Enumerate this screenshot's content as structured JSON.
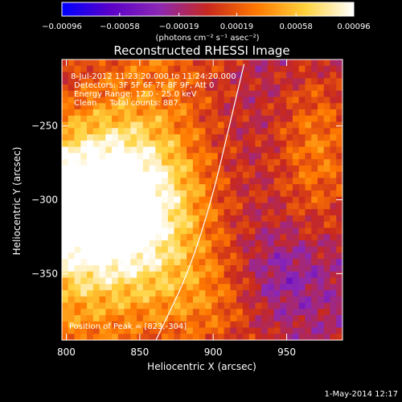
{
  "chart_data": {
    "type": "heatmap",
    "title": "Reconstructed RHESSI Image",
    "xlabel": "Heliocentric X (arcsec)",
    "ylabel": "Heliocentric Y (arcsec)",
    "xlim": [
      797,
      988
    ],
    "ylim": [
      -395,
      -205
    ],
    "x_ticks": [
      800,
      850,
      900,
      950
    ],
    "x_tick_labels": [
      "800",
      "850",
      "900",
      "950"
    ],
    "y_ticks": [
      -250,
      -300,
      -350
    ],
    "y_tick_labels": [
      "−250",
      "−300",
      "−350"
    ],
    "colorbar": {
      "range": [
        -0.00096,
        0.00096
      ],
      "ticks": [
        -0.00096,
        -0.00058,
        -0.00019,
        0.00019,
        0.00058,
        0.00096
      ],
      "tick_labels": [
        "−0.00096",
        "−0.00058",
        "−0.00019",
        "0.00019",
        "0.00058",
        "0.00096"
      ],
      "unit_label": "(photons cm⁻² s⁻¹ asec⁻²)",
      "colors": [
        "#0000ff",
        "#5a00c8",
        "#8c28b4",
        "#c8281e",
        "#ff7800",
        "#ffd23c",
        "#ffffff"
      ]
    },
    "peak": {
      "x": 823,
      "y": -304
    },
    "limb_curve": [
      [
        861,
        -395
      ],
      [
        883,
        -350
      ],
      [
        899,
        -300
      ],
      [
        911,
        -250
      ],
      [
        921,
        -208
      ]
    ],
    "annotations": {
      "time_range": "8-Jul-2012 11:23:20.000 to 11:24:20.000",
      "detectors": "Detectors: 3F 5F 6F 7F 8F 9F, Att 0",
      "energy": "Energy Range: 12.0 - 25.0 keV",
      "method": "Clean     Total counts: 887.",
      "peak_label": "Position of Peak = [823,-304]"
    }
  },
  "footer_date": "1-May-2014 12:17"
}
